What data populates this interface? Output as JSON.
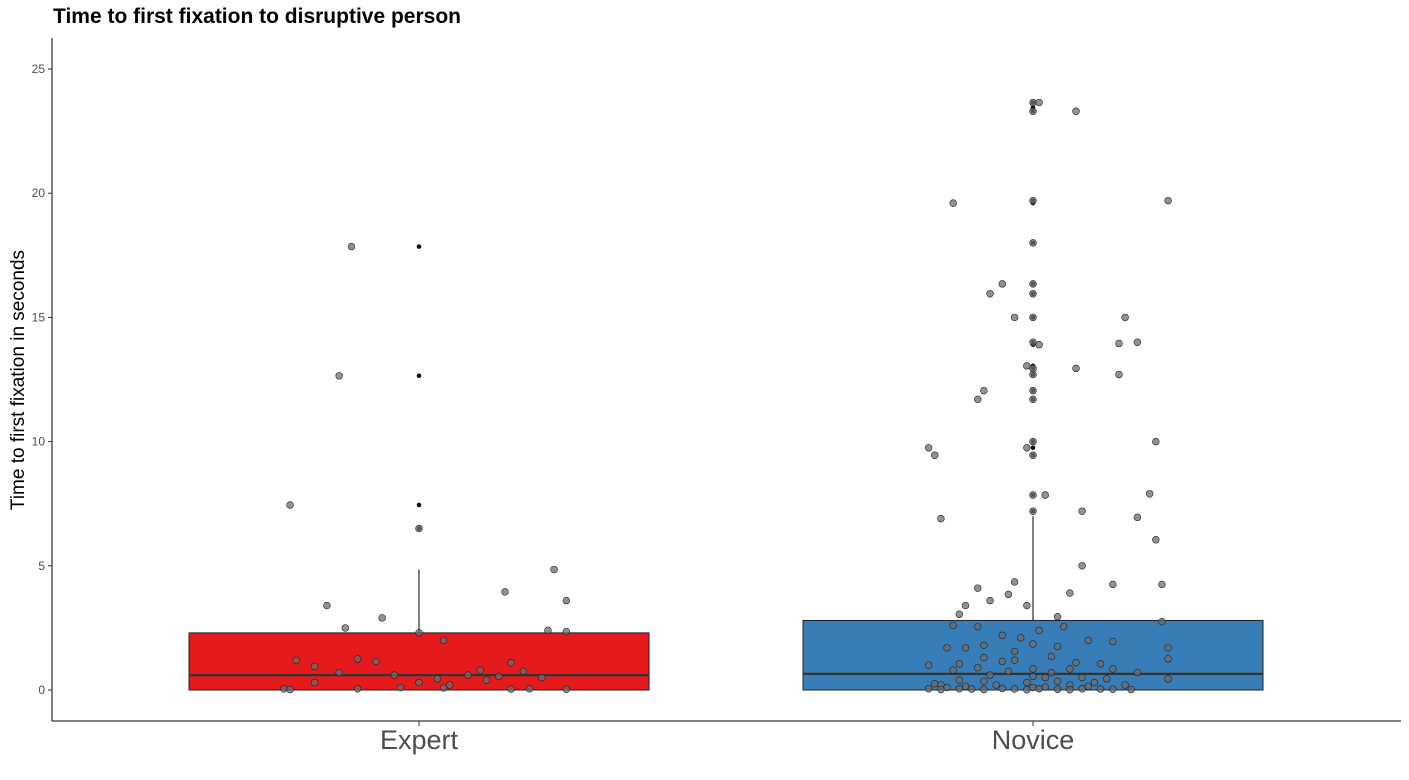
{
  "chart_data": {
    "type": "box",
    "title": "Time to first fixation to disruptive person",
    "xlabel": "",
    "ylabel": "Time to first fixation in seconds",
    "ylim": [
      -1.2,
      26.2
    ],
    "yticks": [
      0,
      5,
      10,
      15,
      20,
      25
    ],
    "categories": [
      "Expert",
      "Novice"
    ],
    "grid": false,
    "legend": "none",
    "colors": {
      "Expert": "#e41a1c",
      "Novice": "#377eb8"
    },
    "boxes": [
      {
        "category": "Expert",
        "q1": 0.0,
        "median": 0.6,
        "q3": 2.3,
        "whisker_high": 4.85,
        "whisker_low": 0.0,
        "outliers": [
          6.5,
          7.45,
          12.65,
          17.85
        ]
      },
      {
        "category": "Novice",
        "q1": 0.0,
        "median": 0.65,
        "q3": 2.8,
        "whisker_high": 7.0,
        "whisker_low": 0.0,
        "outliers": [
          7.2,
          7.85,
          9.45,
          9.75,
          10.0,
          11.7,
          12.05,
          12.7,
          12.95,
          13.05,
          13.9,
          14.0,
          15.0,
          15.95,
          16.35,
          18.0,
          19.6,
          19.7,
          23.3,
          23.45,
          23.65
        ]
      }
    ],
    "jitter_points": [
      {
        "category": "Expert",
        "points": [
          {
            "dx": -0.11,
            "y": 17.85
          },
          {
            "dx": -0.13,
            "y": 12.65
          },
          {
            "dx": -0.21,
            "y": 7.45
          },
          {
            "dx": 0.0,
            "y": 6.5
          },
          {
            "dx": 0.22,
            "y": 4.85
          },
          {
            "dx": 0.14,
            "y": 3.95
          },
          {
            "dx": 0.24,
            "y": 3.6
          },
          {
            "dx": -0.15,
            "y": 3.4
          },
          {
            "dx": -0.06,
            "y": 2.9
          },
          {
            "dx": -0.12,
            "y": 2.5
          },
          {
            "dx": 0.21,
            "y": 2.4
          },
          {
            "dx": 0.24,
            "y": 2.35
          },
          {
            "dx": 0.0,
            "y": 2.3
          },
          {
            "dx": 0.04,
            "y": 2.0
          },
          {
            "dx": -0.2,
            "y": 1.2
          },
          {
            "dx": -0.1,
            "y": 1.25
          },
          {
            "dx": -0.07,
            "y": 1.15
          },
          {
            "dx": -0.17,
            "y": 0.95
          },
          {
            "dx": 0.15,
            "y": 1.1
          },
          {
            "dx": 0.1,
            "y": 0.8
          },
          {
            "dx": 0.17,
            "y": 0.75
          },
          {
            "dx": -0.13,
            "y": 0.7
          },
          {
            "dx": -0.04,
            "y": 0.6
          },
          {
            "dx": 0.08,
            "y": 0.6
          },
          {
            "dx": 0.13,
            "y": 0.55
          },
          {
            "dx": 0.2,
            "y": 0.5
          },
          {
            "dx": 0.03,
            "y": 0.45
          },
          {
            "dx": 0.0,
            "y": 0.3
          },
          {
            "dx": 0.11,
            "y": 0.4
          },
          {
            "dx": -0.17,
            "y": 0.3
          },
          {
            "dx": 0.05,
            "y": 0.2
          },
          {
            "dx": -0.22,
            "y": 0.05
          },
          {
            "dx": -0.1,
            "y": 0.05
          },
          {
            "dx": -0.03,
            "y": 0.1
          },
          {
            "dx": 0.04,
            "y": 0.08
          },
          {
            "dx": 0.18,
            "y": 0.05
          },
          {
            "dx": 0.24,
            "y": 0.03
          },
          {
            "dx": -0.21,
            "y": 0.02
          },
          {
            "dx": 0.15,
            "y": 0.04
          }
        ]
      },
      {
        "category": "Novice",
        "points": [
          {
            "dx": 0.0,
            "y": 23.65
          },
          {
            "dx": 0.01,
            "y": 23.65
          },
          {
            "dx": 0.07,
            "y": 23.3
          },
          {
            "dx": 0.0,
            "y": 23.3
          },
          {
            "dx": -0.13,
            "y": 19.6
          },
          {
            "dx": 0.0,
            "y": 19.7
          },
          {
            "dx": 0.22,
            "y": 19.7
          },
          {
            "dx": 0.0,
            "y": 18.0
          },
          {
            "dx": -0.05,
            "y": 16.35
          },
          {
            "dx": 0.0,
            "y": 16.35
          },
          {
            "dx": -0.07,
            "y": 15.95
          },
          {
            "dx": 0.0,
            "y": 15.95
          },
          {
            "dx": -0.03,
            "y": 15.0
          },
          {
            "dx": 0.0,
            "y": 15.0
          },
          {
            "dx": 0.15,
            "y": 15.0
          },
          {
            "dx": 0.0,
            "y": 14.0
          },
          {
            "dx": 0.01,
            "y": 13.9
          },
          {
            "dx": 0.14,
            "y": 13.95
          },
          {
            "dx": 0.17,
            "y": 14.0
          },
          {
            "dx": -0.01,
            "y": 13.05
          },
          {
            "dx": 0.0,
            "y": 12.95
          },
          {
            "dx": 0.07,
            "y": 12.95
          },
          {
            "dx": 0.14,
            "y": 12.7
          },
          {
            "dx": 0.0,
            "y": 12.7
          },
          {
            "dx": -0.08,
            "y": 12.05
          },
          {
            "dx": 0.0,
            "y": 12.05
          },
          {
            "dx": -0.09,
            "y": 11.7
          },
          {
            "dx": 0.0,
            "y": 11.7
          },
          {
            "dx": 0.2,
            "y": 10.0
          },
          {
            "dx": 0.0,
            "y": 10.0
          },
          {
            "dx": -0.17,
            "y": 9.75
          },
          {
            "dx": -0.01,
            "y": 9.75
          },
          {
            "dx": -0.16,
            "y": 9.45
          },
          {
            "dx": 0.0,
            "y": 9.45
          },
          {
            "dx": 0.0,
            "y": 7.85
          },
          {
            "dx": 0.02,
            "y": 7.85
          },
          {
            "dx": 0.19,
            "y": 7.9
          },
          {
            "dx": 0.0,
            "y": 7.2
          },
          {
            "dx": 0.08,
            "y": 7.2
          },
          {
            "dx": 0.17,
            "y": 6.95
          },
          {
            "dx": -0.15,
            "y": 6.9
          },
          {
            "dx": 0.2,
            "y": 6.05
          },
          {
            "dx": 0.08,
            "y": 5.0
          },
          {
            "dx": 0.13,
            "y": 4.25
          },
          {
            "dx": 0.21,
            "y": 4.25
          },
          {
            "dx": -0.03,
            "y": 4.35
          },
          {
            "dx": -0.09,
            "y": 4.1
          },
          {
            "dx": -0.04,
            "y": 3.85
          },
          {
            "dx": 0.06,
            "y": 3.9
          },
          {
            "dx": -0.07,
            "y": 3.6
          },
          {
            "dx": -0.11,
            "y": 3.4
          },
          {
            "dx": -0.01,
            "y": 3.4
          },
          {
            "dx": 0.04,
            "y": 2.95
          },
          {
            "dx": -0.12,
            "y": 3.05
          },
          {
            "dx": 0.21,
            "y": 2.75
          },
          {
            "dx": -0.13,
            "y": 2.6
          },
          {
            "dx": -0.09,
            "y": 2.55
          },
          {
            "dx": 0.05,
            "y": 2.55
          },
          {
            "dx": 0.01,
            "y": 2.4
          },
          {
            "dx": -0.05,
            "y": 2.2
          },
          {
            "dx": -0.02,
            "y": 2.1
          },
          {
            "dx": 0.09,
            "y": 2.0
          },
          {
            "dx": 0.13,
            "y": 1.95
          },
          {
            "dx": -0.08,
            "y": 1.8
          },
          {
            "dx": 0.0,
            "y": 1.85
          },
          {
            "dx": 0.04,
            "y": 1.75
          },
          {
            "dx": -0.14,
            "y": 1.7
          },
          {
            "dx": -0.11,
            "y": 1.7
          },
          {
            "dx": 0.22,
            "y": 1.7
          },
          {
            "dx": 0.22,
            "y": 1.25
          },
          {
            "dx": -0.03,
            "y": 1.55
          },
          {
            "dx": 0.03,
            "y": 1.35
          },
          {
            "dx": -0.08,
            "y": 1.3
          },
          {
            "dx": -0.03,
            "y": 1.2
          },
          {
            "dx": -0.05,
            "y": 1.15
          },
          {
            "dx": 0.07,
            "y": 1.1
          },
          {
            "dx": -0.12,
            "y": 1.05
          },
          {
            "dx": 0.11,
            "y": 1.05
          },
          {
            "dx": -0.17,
            "y": 1.0
          },
          {
            "dx": -0.09,
            "y": 0.9
          },
          {
            "dx": 0.0,
            "y": 0.85
          },
          {
            "dx": 0.06,
            "y": 0.85
          },
          {
            "dx": 0.13,
            "y": 0.85
          },
          {
            "dx": -0.13,
            "y": 0.8
          },
          {
            "dx": -0.04,
            "y": 0.75
          },
          {
            "dx": 0.03,
            "y": 0.7
          },
          {
            "dx": 0.17,
            "y": 0.7
          },
          {
            "dx": -0.07,
            "y": 0.6
          },
          {
            "dx": 0.0,
            "y": 0.55
          },
          {
            "dx": 0.02,
            "y": 0.5
          },
          {
            "dx": 0.08,
            "y": 0.5
          },
          {
            "dx": 0.12,
            "y": 0.45
          },
          {
            "dx": 0.22,
            "y": 0.45
          },
          {
            "dx": -0.12,
            "y": 0.4
          },
          {
            "dx": -0.08,
            "y": 0.35
          },
          {
            "dx": -0.01,
            "y": 0.3
          },
          {
            "dx": 0.04,
            "y": 0.35
          },
          {
            "dx": 0.1,
            "y": 0.3
          },
          {
            "dx": -0.16,
            "y": 0.25
          },
          {
            "dx": -0.15,
            "y": 0.2
          },
          {
            "dx": -0.06,
            "y": 0.2
          },
          {
            "dx": 0.06,
            "y": 0.2
          },
          {
            "dx": 0.15,
            "y": 0.2
          },
          {
            "dx": -0.11,
            "y": 0.15
          },
          {
            "dx": 0.0,
            "y": 0.1
          },
          {
            "dx": 0.02,
            "y": 0.12
          },
          {
            "dx": 0.09,
            "y": 0.15
          },
          {
            "dx": -0.14,
            "y": 0.1
          },
          {
            "dx": -0.17,
            "y": 0.05
          },
          {
            "dx": -0.12,
            "y": 0.05
          },
          {
            "dx": -0.1,
            "y": 0.04
          },
          {
            "dx": -0.05,
            "y": 0.06
          },
          {
            "dx": -0.03,
            "y": 0.04
          },
          {
            "dx": 0.01,
            "y": 0.05
          },
          {
            "dx": 0.04,
            "y": 0.03
          },
          {
            "dx": 0.08,
            "y": 0.05
          },
          {
            "dx": 0.11,
            "y": 0.04
          },
          {
            "dx": 0.13,
            "y": 0.03
          },
          {
            "dx": 0.16,
            "y": 0.02
          },
          {
            "dx": -0.08,
            "y": 0.02
          },
          {
            "dx": -0.15,
            "y": 0.02
          },
          {
            "dx": 0.06,
            "y": 0.01
          },
          {
            "dx": -0.01,
            "y": 0.01
          }
        ]
      }
    ]
  }
}
